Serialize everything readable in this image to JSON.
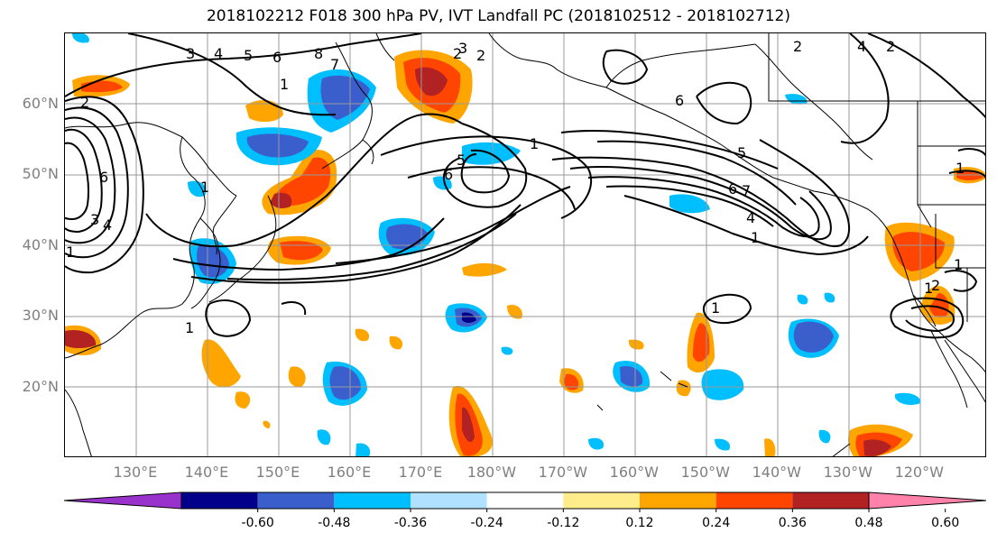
{
  "title": "2018102212 F018 300 hPa PV, IVT Landfall PC (2018102512 - 2018102712)",
  "lat_labels": [
    {
      "lat": 60,
      "text": "60°N"
    },
    {
      "lat": 50,
      "text": "50°N"
    },
    {
      "lat": 40,
      "text": "40°N"
    },
    {
      "lat": 30,
      "text": "30°N"
    },
    {
      "lat": 20,
      "text": "20°N"
    }
  ],
  "lon_labels": [
    {
      "lon": 130,
      "text": "130°E"
    },
    {
      "lon": 140,
      "text": "140°E"
    },
    {
      "lon": 150,
      "text": "150°E"
    },
    {
      "lon": 160,
      "text": "160°E"
    },
    {
      "lon": 170,
      "text": "170°E"
    },
    {
      "lon": 180,
      "text": "180°W"
    },
    {
      "lon": 190,
      "text": "170°W"
    },
    {
      "lon": 200,
      "text": "160°W"
    },
    {
      "lon": 210,
      "text": "150°W"
    },
    {
      "lon": 220,
      "text": "140°W"
    },
    {
      "lon": 230,
      "text": "130°W"
    },
    {
      "lon": 240,
      "text": "120°W"
    }
  ],
  "colorbar": {
    "colors": [
      "#9932cc",
      "#00008b",
      "#3a5fcd",
      "#00bfff",
      "#b0e2ff",
      "#ffffff",
      "#ffec8b",
      "#ffa500",
      "#ff4500",
      "#b22222",
      "#ff82ab"
    ],
    "ticks": [
      "-0.60",
      "-0.48",
      "-0.36",
      "-0.24",
      "-0.12",
      "0.12",
      "0.24",
      "0.36",
      "0.48",
      "0.60"
    ]
  },
  "contour_labels": [
    "3",
    "4",
    "5",
    "6",
    "8",
    "7",
    "2",
    "3",
    "2",
    "1",
    "2",
    "6",
    "6",
    "5",
    "4",
    "3",
    "1",
    "1",
    "1",
    "1",
    "2",
    "5",
    "6",
    "7",
    "4",
    "1",
    "1",
    "1",
    "6",
    "2",
    "1",
    "1",
    "4",
    "2"
  ]
}
